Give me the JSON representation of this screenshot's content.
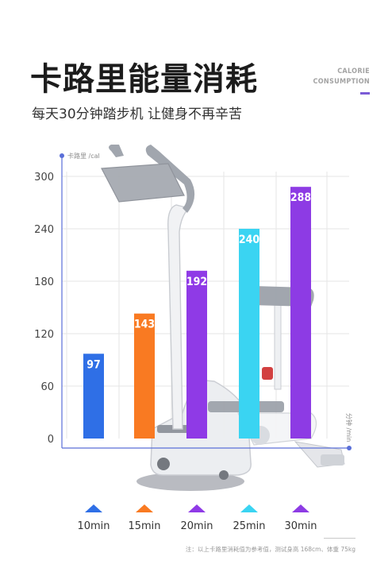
{
  "header": {
    "title": "卡路里能量消耗",
    "subtitle": "每天30分钟踏步机 让健身不再辛苦",
    "badge_line1": "CALORIE",
    "badge_line2": "CONSUMPTION"
  },
  "footnote": "注：以上卡路里消耗值为参考值，测试身高 168cm、体重 75kg",
  "colors": {
    "axis": "#5a6fd8",
    "grid": "#e6e6e6",
    "accent": "#7b5bd6"
  },
  "chart_data": {
    "type": "bar",
    "ylabel": "卡路里 /cal",
    "xlabel": "分钟 /min",
    "ylim": [
      0,
      300
    ],
    "yticks": [
      0,
      60,
      120,
      180,
      240,
      300
    ],
    "categories": [
      "10min",
      "15min",
      "20min",
      "25min",
      "30min"
    ],
    "values": [
      97,
      143,
      192,
      240,
      288
    ],
    "value_labels": [
      "97",
      "143",
      "192",
      "240",
      "288"
    ],
    "bar_colors": [
      "#2f6fe6",
      "#f97a22",
      "#8f3ae6",
      "#3ad4f2",
      "#8d3be4"
    ],
    "grid": true,
    "legend": "bottom"
  }
}
